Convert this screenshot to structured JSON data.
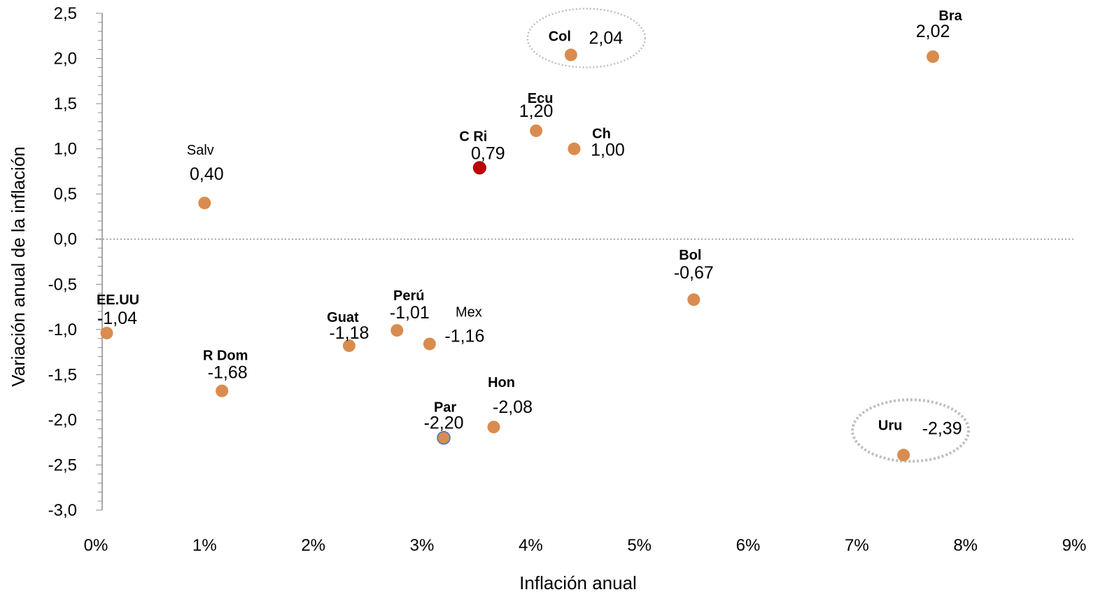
{
  "chart_data": {
    "type": "scatter",
    "xlabel": "Inflación anual",
    "ylabel": "Variación anual de la inflación",
    "xlim": [
      0,
      9
    ],
    "ylim": [
      -3.0,
      2.5
    ],
    "x_ticks": [
      "0%",
      "1%",
      "2%",
      "3%",
      "4%",
      "5%",
      "6%",
      "7%",
      "8%",
      "9%"
    ],
    "y_ticks": [
      "2,5",
      "2,0",
      "1,5",
      "1,0",
      "0,5",
      "0,0",
      "-0,5",
      "-1,0",
      "-1,5",
      "-2,0",
      "-2,5",
      "-3,0"
    ],
    "reference_line": {
      "y": 0,
      "style": "dotted"
    },
    "point_color": "#d98c4f",
    "points": [
      {
        "name": "Bra",
        "label": "2,02",
        "x": 7.7,
        "y": 2.02,
        "bold": true,
        "name_color": "#000000",
        "value_color": "#000000"
      },
      {
        "name": "Col",
        "label": "2,04",
        "x": 4.37,
        "y": 2.04,
        "bold": true,
        "name_color": "#000000",
        "value_color": "#000000",
        "highlight": true
      },
      {
        "name": "Ecu",
        "label": "1,20",
        "x": 4.05,
        "y": 1.2,
        "bold": true,
        "name_color": "#c00000",
        "value_color": "#000000"
      },
      {
        "name": "Ch",
        "label": "1,00",
        "x": 4.4,
        "y": 1.0,
        "bold": true,
        "name_color": "#000000",
        "value_color": "#000000"
      },
      {
        "name": "C Ri",
        "label": "0,79",
        "x": 3.53,
        "y": 0.79,
        "bold": true,
        "name_color": "#000000",
        "value_color": "#c00000",
        "fill": "#c00000"
      },
      {
        "name": "Salv",
        "label": "0,40",
        "x": 1.0,
        "y": 0.4,
        "bold": false,
        "name_color": "#000000",
        "value_color": "#000000"
      },
      {
        "name": "Bol",
        "label": "-0,67",
        "x": 5.5,
        "y": -0.67,
        "bold": true,
        "name_color": "#000000",
        "value_color": "#000000"
      },
      {
        "name": "EE.UU",
        "label": "-1,04",
        "x": 0.1,
        "y": -1.04,
        "bold": true,
        "name_color": "#000000",
        "value_color": "#000000"
      },
      {
        "name": "Perú",
        "label": "-1,01",
        "x": 2.77,
        "y": -1.01,
        "bold": true,
        "name_color": "#000000",
        "value_color": "#000000"
      },
      {
        "name": "Mex",
        "label": "-1,16",
        "x": 3.07,
        "y": -1.16,
        "bold": false,
        "name_color": "#000000",
        "value_color": "#000000"
      },
      {
        "name": "Guat",
        "label": "-1,18",
        "x": 2.33,
        "y": -1.18,
        "bold": true,
        "name_color": "#000000",
        "value_color": "#000000"
      },
      {
        "name": "R Dom",
        "label": "-1,68",
        "x": 1.16,
        "y": -1.68,
        "bold": true,
        "name_color": "#000000",
        "value_color": "#000000"
      },
      {
        "name": "Hon",
        "label": "-2,08",
        "x": 3.66,
        "y": -2.08,
        "bold": true,
        "name_color": "#000000",
        "value_color": "#000000"
      },
      {
        "name": "Par",
        "label": "-2,20",
        "x": 3.2,
        "y": -2.2,
        "bold": true,
        "name_color": "#000000",
        "value_color": "#000000",
        "stroke": "#4472c4"
      },
      {
        "name": "Uru",
        "label": "-2,39",
        "x": 7.43,
        "y": -2.39,
        "bold": true,
        "name_color": "#000000",
        "value_color": "#000000",
        "highlight": true
      }
    ]
  }
}
